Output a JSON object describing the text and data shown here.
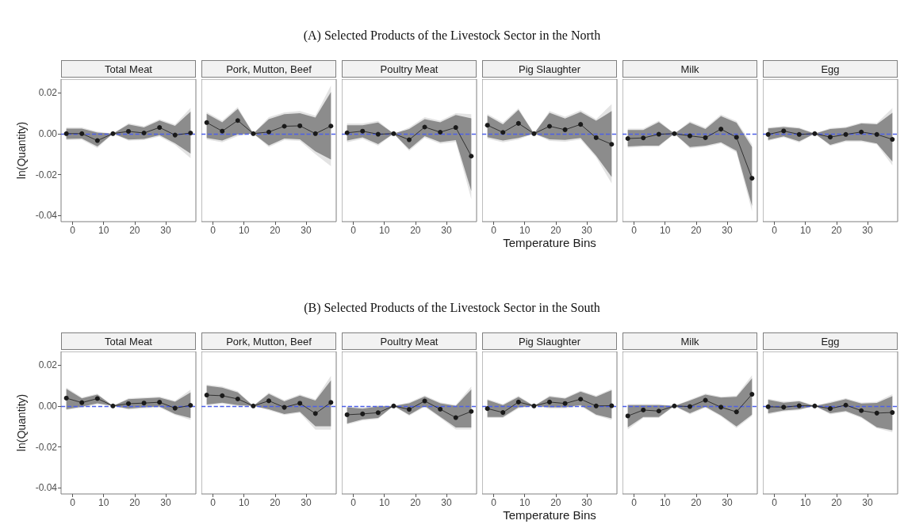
{
  "chart_data": [
    {
      "type": "line",
      "title": "Total Meat",
      "annotations": [
        "(A) Selected Products of the Livestock Sector in the North"
      ],
      "ylabel": "ln(Quantity)",
      "x": [
        -2,
        3,
        8,
        13,
        18,
        23,
        28,
        33,
        38
      ],
      "xlim": [
        -3.7,
        39.7
      ],
      "xticks": [
        0,
        10,
        20,
        30
      ],
      "ylim": [
        -0.043,
        0.0266
      ],
      "yticks": [
        -0.04,
        -0.02,
        {
          "value": 0,
          "label": "0.00"
        },
        0.02
      ],
      "marker": "circle",
      "line_style": "solid",
      "ref_lines": [
        {
          "axis": "y",
          "value": 0,
          "color": "#4d5fe8",
          "line_style": "dashed"
        }
      ],
      "series": [
        {
          "color": "#e3e3e3",
          "values": [
            null,
            null,
            null,
            null,
            null,
            null,
            null,
            null,
            null
          ],
          "upper": [
            0.003,
            0.003,
            0.001,
            0,
            0.005,
            0.0036,
            0.007,
            0.0045,
            0.0126
          ],
          "lower": [
            -0.0032,
            -0.003,
            -0.007,
            0,
            -0.0035,
            -0.0032,
            -0.0014,
            -0.0055,
            -0.012
          ]
        },
        {
          "color": "#8c8c8c",
          "values": [
            null,
            null,
            null,
            null,
            null,
            null,
            null,
            null,
            null
          ],
          "upper": [
            0.0024,
            0.0024,
            0.0005,
            0,
            0.0045,
            0.003,
            0.0064,
            0.0038,
            0.0107
          ],
          "lower": [
            -0.0026,
            -0.0024,
            -0.0063,
            0,
            -0.0029,
            -0.0026,
            -0.0008,
            -0.0047,
            -0.0097
          ]
        },
        {
          "color": "#1a1a1a",
          "values": [
            0,
            0,
            -0.0034,
            0,
            0.0011,
            0.0003,
            0.003,
            -0.0007,
            0.0003
          ]
        }
      ]
    },
    {
      "type": "line",
      "title": "Pork, Mutton, Beef",
      "tick_labels": "x",
      "x": [
        -2,
        3,
        8,
        13,
        18,
        23,
        28,
        33,
        38
      ],
      "xlim": [
        -3.7,
        39.7
      ],
      "xticks": [
        0,
        10,
        20,
        30
      ],
      "ylim": [
        -0.043,
        0.0266
      ],
      "marker": "circle",
      "line_style": "solid",
      "ref_lines": [
        {
          "axis": "y",
          "value": 0,
          "color": "#4d5fe8",
          "line_style": "dashed"
        }
      ],
      "series": [
        {
          "color": "#e3e3e3",
          "values": [
            null,
            null,
            null,
            null,
            null,
            null,
            null,
            null,
            null
          ],
          "upper": [
            0.0105,
            0.0063,
            0.013,
            0,
            0.008,
            0.0104,
            0.011,
            0.0088,
            0.0235
          ],
          "lower": [
            -0.0029,
            -0.0042,
            -0.0012,
            0,
            -0.0066,
            -0.0032,
            -0.0036,
            -0.01,
            -0.0159
          ]
        },
        {
          "color": "#8c8c8c",
          "values": [
            null,
            null,
            null,
            null,
            null,
            null,
            null,
            null,
            null
          ],
          "upper": [
            0.0097,
            0.0055,
            0.0121,
            0,
            0.0071,
            0.0095,
            0.01,
            0.0078,
            0.0203
          ],
          "lower": [
            -0.0021,
            -0.0034,
            -0.0004,
            0,
            -0.0058,
            -0.0024,
            -0.0028,
            -0.0087,
            -0.0126
          ]
        },
        {
          "color": "#1a1a1a",
          "values": [
            0.0054,
            0.0012,
            0.0064,
            0,
            0.0008,
            0.0036,
            0.0038,
            0,
            0.0037
          ]
        }
      ]
    },
    {
      "type": "line",
      "title": "Poultry Meat",
      "tick_labels": "x",
      "x": [
        -2,
        3,
        8,
        13,
        18,
        23,
        28,
        33,
        38
      ],
      "xlim": [
        -3.7,
        39.7
      ],
      "xticks": [
        0,
        10,
        20,
        30
      ],
      "ylim": [
        -0.043,
        0.0266
      ],
      "marker": "circle",
      "line_style": "solid",
      "ref_lines": [
        {
          "axis": "y",
          "value": 0,
          "color": "#4d5fe8",
          "line_style": "dashed"
        }
      ],
      "series": [
        {
          "color": "#e3e3e3",
          "values": [
            null,
            null,
            null,
            null,
            null,
            null,
            null,
            null,
            null
          ],
          "upper": [
            0.0049,
            0.0049,
            0.0062,
            0,
            0.003,
            0.008,
            0.0063,
            0.01,
            0.0095
          ],
          "lower": [
            -0.0042,
            -0.0026,
            -0.0059,
            0,
            -0.0084,
            -0.002,
            -0.0049,
            -0.004,
            -0.032
          ]
        },
        {
          "color": "#8c8c8c",
          "values": [
            null,
            null,
            null,
            null,
            null,
            null,
            null,
            null,
            null
          ],
          "upper": [
            0.0041,
            0.0041,
            0.0054,
            0,
            0.0022,
            0.0071,
            0.0055,
            0.0091,
            0.0075
          ],
          "lower": [
            -0.0034,
            -0.0018,
            -0.0051,
            0,
            -0.0076,
            -0.0012,
            -0.0041,
            -0.0032,
            -0.028
          ]
        },
        {
          "color": "#1a1a1a",
          "values": [
            0.0004,
            0.0012,
            -0.0003,
            0,
            -0.003,
            0.0032,
            0.0007,
            0.003,
            -0.011
          ]
        }
      ]
    },
    {
      "type": "line",
      "title": "Pig Slaughter",
      "tick_labels": "x",
      "xlabel": "Temperature Bins",
      "x": [
        -2,
        3,
        8,
        13,
        18,
        23,
        28,
        33,
        38
      ],
      "xlim": [
        -3.7,
        39.7
      ],
      "xticks": [
        0,
        10,
        20,
        30
      ],
      "ylim": [
        -0.043,
        0.0266
      ],
      "marker": "circle",
      "line_style": "solid",
      "ref_lines": [
        {
          "axis": "y",
          "value": 0,
          "color": "#4d5fe8",
          "line_style": "dashed"
        }
      ],
      "series": [
        {
          "color": "#e3e3e3",
          "values": [
            null,
            null,
            null,
            null,
            null,
            null,
            null,
            null,
            null
          ],
          "upper": [
            0.0096,
            0.0054,
            0.0124,
            0,
            0.011,
            0.0082,
            0.0114,
            0.0071,
            0.0144
          ],
          "lower": [
            -0.0025,
            -0.0042,
            -0.0029,
            0,
            -0.0036,
            -0.0039,
            -0.0029,
            -0.0116,
            -0.0243
          ]
        },
        {
          "color": "#8c8c8c",
          "values": [
            null,
            null,
            null,
            null,
            null,
            null,
            null,
            null,
            null
          ],
          "upper": [
            0.0088,
            0.0046,
            0.0116,
            0,
            0.0102,
            0.0074,
            0.0106,
            0.0063,
            0.011
          ],
          "lower": [
            -0.0017,
            -0.0034,
            -0.0021,
            0,
            -0.0028,
            -0.0031,
            -0.0021,
            -0.0108,
            -0.0212
          ]
        },
        {
          "color": "#1a1a1a",
          "values": [
            0.0041,
            0.0006,
            0.005,
            0,
            0.0036,
            0.0019,
            0.0045,
            -0.002,
            -0.0052
          ]
        }
      ]
    },
    {
      "type": "line",
      "title": "Milk",
      "tick_labels": "x",
      "x": [
        -2,
        3,
        8,
        13,
        18,
        23,
        28,
        33,
        38
      ],
      "xlim": [
        -3.7,
        39.7
      ],
      "xticks": [
        0,
        10,
        20,
        30
      ],
      "ylim": [
        -0.043,
        0.0266
      ],
      "marker": "circle",
      "line_style": "solid",
      "ref_lines": [
        {
          "axis": "y",
          "value": 0,
          "color": "#4d5fe8",
          "line_style": "dashed"
        }
      ],
      "series": [
        {
          "color": "#e3e3e3",
          "values": [
            null,
            null,
            null,
            null,
            null,
            null,
            null,
            null,
            null
          ],
          "upper": [
            0.0024,
            0.0024,
            0.0063,
            0,
            0.006,
            0.0029,
            0.0093,
            0.0061,
            -0.0052
          ],
          "lower": [
            -0.0069,
            -0.0065,
            -0.0065,
            0,
            -0.0072,
            -0.0065,
            -0.0048,
            -0.0092,
            -0.038
          ]
        },
        {
          "color": "#8c8c8c",
          "values": [
            null,
            null,
            null,
            null,
            null,
            null,
            null,
            null,
            null
          ],
          "upper": [
            0.0018,
            0.0018,
            0.0056,
            0,
            0.0053,
            0.0022,
            0.0085,
            0.0053,
            -0.0066
          ],
          "lower": [
            -0.0063,
            -0.0059,
            -0.0059,
            0,
            -0.0066,
            -0.0059,
            -0.0042,
            -0.0084,
            -0.0353
          ]
        },
        {
          "color": "#1a1a1a",
          "values": [
            -0.0024,
            -0.0021,
            -0.0003,
            0,
            -0.0011,
            -0.002,
            0.0022,
            -0.0018,
            -0.0218
          ]
        }
      ]
    },
    {
      "type": "line",
      "title": "Egg",
      "tick_labels": "x",
      "x": [
        -2,
        3,
        8,
        13,
        18,
        23,
        28,
        33,
        38
      ],
      "xlim": [
        -3.7,
        39.7
      ],
      "xticks": [
        0,
        10,
        20,
        30
      ],
      "ylim": [
        -0.043,
        0.0266
      ],
      "marker": "circle",
      "line_style": "solid",
      "ref_lines": [
        {
          "axis": "y",
          "value": 0,
          "color": "#4d5fe8",
          "line_style": "dashed"
        }
      ],
      "series": [
        {
          "color": "#e3e3e3",
          "values": [
            null,
            null,
            null,
            null,
            null,
            null,
            null,
            null,
            null
          ],
          "upper": [
            0.003,
            0.0037,
            0.003,
            0,
            0.0027,
            0.0033,
            0.0054,
            0.0051,
            0.0125
          ],
          "lower": [
            -0.0036,
            -0.0018,
            -0.0043,
            0,
            -0.006,
            -0.0039,
            -0.0039,
            -0.0053,
            -0.0155
          ]
        },
        {
          "color": "#8c8c8c",
          "values": [
            null,
            null,
            null,
            null,
            null,
            null,
            null,
            null,
            null
          ],
          "upper": [
            0.0025,
            0.0032,
            0.0025,
            0,
            0.0022,
            0.0028,
            0.0049,
            0.0046,
            0.0102
          ],
          "lower": [
            -0.0031,
            -0.0013,
            -0.0038,
            0,
            -0.0055,
            -0.0034,
            -0.0034,
            -0.0048,
            -0.0136
          ]
        },
        {
          "color": "#1a1a1a",
          "values": [
            -0.0004,
            0.0013,
            -0.0004,
            0,
            -0.0017,
            -0.0004,
            0.0008,
            -0.0004,
            -0.0028
          ]
        }
      ]
    },
    {
      "type": "line",
      "title": "Total Meat",
      "annotations": [
        "(B) Selected Products of the Livestock Sector in the South"
      ],
      "ylabel": "ln(Quantity)",
      "x": [
        -2,
        3,
        8,
        13,
        18,
        23,
        28,
        33,
        38
      ],
      "xlim": [
        -3.7,
        39.7
      ],
      "xticks": [
        0,
        10,
        20,
        30
      ],
      "ylim": [
        -0.043,
        0.0266
      ],
      "yticks": [
        -0.04,
        -0.02,
        {
          "value": 0,
          "label": "0.00"
        },
        0.02
      ],
      "marker": "circle",
      "line_style": "solid",
      "ref_lines": [
        {
          "axis": "y",
          "value": 0,
          "color": "#4d5fe8",
          "line_style": "dashed"
        }
      ],
      "series": [
        {
          "color": "#e3e3e3",
          "values": [
            null,
            null,
            null,
            null,
            null,
            null,
            null,
            null,
            null
          ],
          "upper": [
            0.009,
            0.0042,
            0.006,
            0,
            0.0038,
            0.0042,
            0.0046,
            0.0025,
            0.0079
          ],
          "lower": [
            -0.002,
            -0.0009,
            0.0008,
            0,
            -0.0018,
            -0.0012,
            -0.0008,
            -0.0044,
            -0.0068
          ]
        },
        {
          "color": "#8c8c8c",
          "values": [
            null,
            null,
            null,
            null,
            null,
            null,
            null,
            null,
            null
          ],
          "upper": [
            0.0083,
            0.0037,
            0.0055,
            0,
            0.0033,
            0.0037,
            0.0041,
            0.002,
            0.0066
          ],
          "lower": [
            -0.0016,
            -0.0004,
            0.0013,
            0,
            -0.0013,
            -0.0007,
            -0.0003,
            -0.0039,
            -0.0059
          ]
        },
        {
          "color": "#1a1a1a",
          "values": [
            0.0038,
            0.0016,
            0.0036,
            0,
            0.0011,
            0.0014,
            0.0018,
            -0.0011,
            0.0003
          ]
        }
      ]
    },
    {
      "type": "line",
      "title": "Pork, Mutton, Beef",
      "tick_labels": "x",
      "x": [
        -2,
        3,
        8,
        13,
        18,
        23,
        28,
        33,
        38
      ],
      "xlim": [
        -3.7,
        39.7
      ],
      "xticks": [
        0,
        10,
        20,
        30
      ],
      "ylim": [
        -0.043,
        0.0266
      ],
      "marker": "circle",
      "line_style": "solid",
      "ref_lines": [
        {
          "axis": "y",
          "value": 0,
          "color": "#4d5fe8",
          "line_style": "dashed"
        }
      ],
      "series": [
        {
          "color": "#e3e3e3",
          "values": [
            null,
            null,
            null,
            null,
            null,
            null,
            null,
            null,
            null
          ],
          "upper": [
            0.0105,
            0.0095,
            0.0072,
            0,
            0.0065,
            0.0028,
            0.0056,
            0.0032,
            0.0147
          ],
          "lower": [
            0.0002,
            0.0011,
            -0.0001,
            0,
            -0.0021,
            -0.0044,
            -0.0034,
            -0.0116,
            -0.0116
          ]
        },
        {
          "color": "#8c8c8c",
          "values": [
            null,
            null,
            null,
            null,
            null,
            null,
            null,
            null,
            null
          ],
          "upper": [
            0.0099,
            0.0089,
            0.0066,
            0,
            0.0059,
            0.0022,
            0.005,
            0.0026,
            0.0125
          ],
          "lower": [
            0.0007,
            0.0016,
            0.0004,
            0,
            -0.0016,
            -0.0039,
            -0.0029,
            -0.0099,
            -0.0099
          ]
        },
        {
          "color": "#1a1a1a",
          "values": [
            0.0053,
            0.005,
            0.0034,
            0,
            0.0025,
            -0.0007,
            0.0013,
            -0.0037,
            0.0017
          ]
        }
      ]
    },
    {
      "type": "line",
      "title": "Poultry Meat",
      "tick_labels": "x",
      "x": [
        -2,
        3,
        8,
        13,
        18,
        23,
        28,
        33,
        38
      ],
      "xlim": [
        -3.7,
        39.7
      ],
      "xticks": [
        0,
        10,
        20,
        30
      ],
      "ylim": [
        -0.043,
        0.0266
      ],
      "marker": "circle",
      "line_style": "solid",
      "ref_lines": [
        {
          "axis": "y",
          "value": 0,
          "color": "#4d5fe8",
          "line_style": "dashed"
        }
      ],
      "series": [
        {
          "color": "#e3e3e3",
          "values": [
            null,
            null,
            null,
            null,
            null,
            null,
            null,
            null,
            null
          ],
          "upper": [
            -0.0002,
            -0.0008,
            0.0002,
            0,
            0.0018,
            0.0051,
            0.0018,
            0.0005,
            0.0095
          ],
          "lower": [
            -0.0091,
            -0.0071,
            -0.0064,
            0,
            -0.0048,
            -0.0005,
            -0.0058,
            -0.0115,
            -0.0115
          ]
        },
        {
          "color": "#8c8c8c",
          "values": [
            null,
            null,
            null,
            null,
            null,
            null,
            null,
            null,
            null
          ],
          "upper": [
            -0.0007,
            -0.0013,
            -0.0003,
            0,
            0.0013,
            0.0046,
            0.0013,
            0,
            0.008
          ],
          "lower": [
            -0.0086,
            -0.0066,
            -0.0059,
            0,
            -0.0043,
            0,
            -0.0053,
            -0.0105,
            -0.0105
          ]
        },
        {
          "color": "#1a1a1a",
          "values": [
            -0.0043,
            -0.0039,
            -0.0033,
            0,
            -0.0017,
            0.0024,
            -0.0016,
            -0.0057,
            -0.0027
          ]
        }
      ]
    },
    {
      "type": "line",
      "title": "Pig Slaughter",
      "tick_labels": "x",
      "xlabel": "Temperature Bins",
      "x": [
        -2,
        3,
        8,
        13,
        18,
        23,
        28,
        33,
        38
      ],
      "xlim": [
        -3.7,
        39.7
      ],
      "xticks": [
        0,
        10,
        20,
        30
      ],
      "ylim": [
        -0.043,
        0.0266
      ],
      "marker": "circle",
      "line_style": "solid",
      "ref_lines": [
        {
          "axis": "y",
          "value": 0,
          "color": "#4d5fe8",
          "line_style": "dashed"
        }
      ],
      "series": [
        {
          "color": "#e3e3e3",
          "values": [
            null,
            null,
            null,
            null,
            null,
            null,
            null,
            null,
            null
          ],
          "upper": [
            0.0034,
            0.0009,
            0.0049,
            0,
            0.005,
            0.0041,
            0.0075,
            0.005,
            0.0083
          ],
          "lower": [
            -0.0059,
            -0.0059,
            -0.0012,
            0,
            -0.0012,
            -0.0012,
            -0.0001,
            -0.0047,
            -0.0068
          ]
        },
        {
          "color": "#8c8c8c",
          "values": [
            null,
            null,
            null,
            null,
            null,
            null,
            null,
            null,
            null
          ],
          "upper": [
            0.0029,
            0.0004,
            0.0044,
            0,
            0.0045,
            0.0036,
            0.007,
            0.0045,
            0.0077
          ],
          "lower": [
            -0.0054,
            -0.0054,
            -0.0007,
            0,
            -0.0007,
            -0.0007,
            0.0004,
            -0.0042,
            -0.0061
          ]
        },
        {
          "color": "#1a1a1a",
          "values": [
            -0.0013,
            -0.0032,
            0.0019,
            0,
            0.0019,
            0.0012,
            0.0033,
            0,
            0.0001
          ]
        }
      ]
    },
    {
      "type": "line",
      "title": "Milk",
      "tick_labels": "x",
      "x": [
        -2,
        3,
        8,
        13,
        18,
        23,
        28,
        33,
        38
      ],
      "xlim": [
        -3.7,
        39.7
      ],
      "xticks": [
        0,
        10,
        20,
        30
      ],
      "ylim": [
        -0.043,
        0.0266
      ],
      "marker": "circle",
      "line_style": "solid",
      "ref_lines": [
        {
          "axis": "y",
          "value": 0,
          "color": "#4d5fe8",
          "line_style": "dashed"
        }
      ],
      "series": [
        {
          "color": "#e3e3e3",
          "values": [
            null,
            null,
            null,
            null,
            null,
            null,
            null,
            null,
            null
          ],
          "upper": [
            0.0009,
            0.0009,
            0.0009,
            0,
            0.0031,
            0.006,
            0.0046,
            0.005,
            0.015
          ],
          "lower": [
            -0.0115,
            -0.0059,
            -0.0059,
            0,
            -0.0041,
            -0.0009,
            -0.0051,
            -0.0108,
            -0.0049
          ]
        },
        {
          "color": "#8c8c8c",
          "values": [
            null,
            null,
            null,
            null,
            null,
            null,
            null,
            null,
            null
          ],
          "upper": [
            0.0004,
            0.0004,
            0.0004,
            0,
            0.0026,
            0.0055,
            0.0041,
            0.0045,
            0.0135
          ],
          "lower": [
            -0.0104,
            -0.0054,
            -0.0054,
            0,
            -0.0036,
            -0.0004,
            -0.0046,
            -0.01,
            -0.0042
          ]
        },
        {
          "color": "#1a1a1a",
          "values": [
            -0.0049,
            -0.002,
            -0.0025,
            0,
            -0.0003,
            0.0028,
            -0.0006,
            -0.0029,
            0.0057
          ]
        }
      ]
    },
    {
      "type": "line",
      "title": "Egg",
      "tick_labels": "x",
      "x": [
        -2,
        3,
        8,
        13,
        18,
        23,
        28,
        33,
        38
      ],
      "xlim": [
        -3.7,
        39.7
      ],
      "xticks": [
        0,
        10,
        20,
        30
      ],
      "ylim": [
        -0.043,
        0.0266
      ],
      "marker": "circle",
      "line_style": "solid",
      "ref_lines": [
        {
          "axis": "y",
          "value": 0,
          "color": "#4d5fe8",
          "line_style": "dashed"
        }
      ],
      "series": [
        {
          "color": "#e3e3e3",
          "values": [
            null,
            null,
            null,
            null,
            null,
            null,
            null,
            null,
            null
          ],
          "upper": [
            0.0035,
            0.0021,
            0.0027,
            0,
            0.002,
            0.0038,
            0.0017,
            0.002,
            0.0057
          ],
          "lower": [
            -0.0041,
            -0.0027,
            -0.0021,
            0,
            -0.0041,
            -0.003,
            -0.0059,
            -0.0109,
            -0.0128
          ]
        },
        {
          "color": "#8c8c8c",
          "values": [
            null,
            null,
            null,
            null,
            null,
            null,
            null,
            null,
            null
          ],
          "upper": [
            0.003,
            0.0016,
            0.0022,
            0,
            0.0015,
            0.0033,
            0.0012,
            0.0015,
            0.0048
          ],
          "lower": [
            -0.0036,
            -0.0022,
            -0.0016,
            0,
            -0.0036,
            -0.0025,
            -0.0054,
            -0.0104,
            -0.0119
          ]
        },
        {
          "color": "#1a1a1a",
          "values": [
            -0.0004,
            -0.0006,
            0.0001,
            0,
            -0.0013,
            0.0004,
            -0.0023,
            -0.0035,
            -0.0032
          ]
        }
      ]
    }
  ]
}
